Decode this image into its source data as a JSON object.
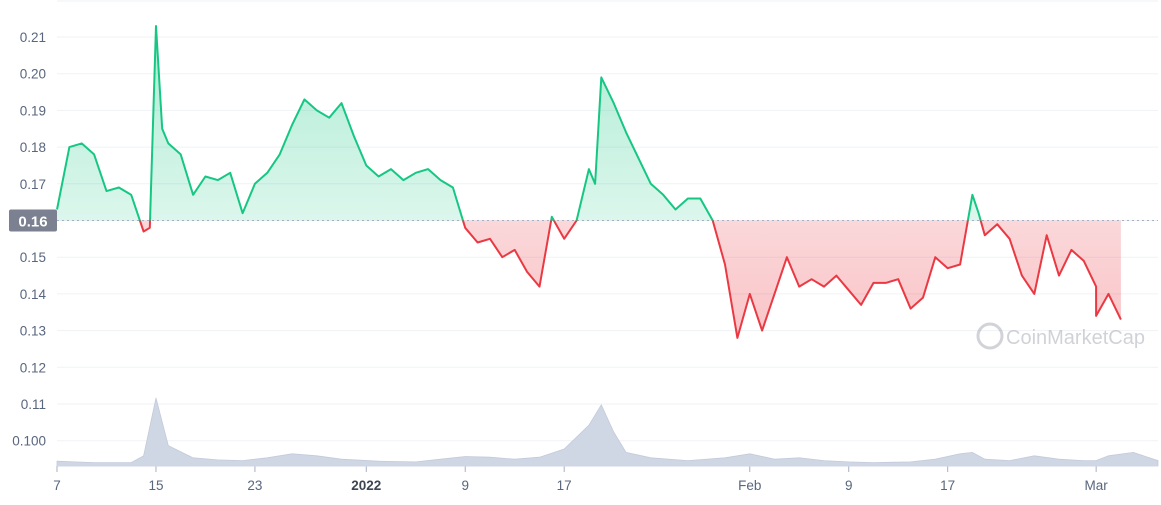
{
  "chart_data": {
    "type": "line",
    "title": "",
    "xlabel": "",
    "ylabel": "",
    "baseline": 0.16,
    "baseline_label": "0.16",
    "ylim": [
      0.093,
      0.216
    ],
    "y_ticks": [
      "0.21",
      "0.20",
      "0.19",
      "0.18",
      "0.17",
      "0.16",
      "0.15",
      "0.14",
      "0.13",
      "0.12",
      "0.11",
      "0.100"
    ],
    "x_ticks": [
      {
        "label": "7",
        "date": "2021-12-07"
      },
      {
        "label": "15",
        "date": "2021-12-15"
      },
      {
        "label": "23",
        "date": "2021-12-23"
      },
      {
        "label": "2022",
        "date": "2022-01-01",
        "bold": true
      },
      {
        "label": "9",
        "date": "2022-01-09"
      },
      {
        "label": "17",
        "date": "2022-01-17"
      },
      {
        "label": "Feb",
        "date": "2022-02-01"
      },
      {
        "label": "9",
        "date": "2022-02-09"
      },
      {
        "label": "17",
        "date": "2022-02-17"
      },
      {
        "label": "Mar",
        "date": "2022-03-01"
      }
    ],
    "x_range": [
      "2021-12-07",
      "2022-03-06"
    ],
    "grid": true,
    "colors": {
      "above": "#16c784",
      "below": "#ea3943",
      "volume": "#cfd6e4",
      "grid": "#eff2f5",
      "baseline_box": "#7b8191"
    },
    "watermark": "CoinMarketCap",
    "price": [
      [
        "2021-12-07",
        0.163
      ],
      [
        "2021-12-08",
        0.18
      ],
      [
        "2021-12-09",
        0.181
      ],
      [
        "2021-12-10",
        0.178
      ],
      [
        "2021-12-11",
        0.168
      ],
      [
        "2021-12-12",
        0.169
      ],
      [
        "2021-12-13",
        0.167
      ],
      [
        "2021-12-14",
        0.157
      ],
      [
        "2021-12-14T12:00",
        0.158
      ],
      [
        "2021-12-15",
        0.213
      ],
      [
        "2021-12-15T12:00",
        0.185
      ],
      [
        "2021-12-16",
        0.181
      ],
      [
        "2021-12-17",
        0.178
      ],
      [
        "2021-12-18",
        0.167
      ],
      [
        "2021-12-19",
        0.172
      ],
      [
        "2021-12-20",
        0.171
      ],
      [
        "2021-12-21",
        0.173
      ],
      [
        "2021-12-22",
        0.162
      ],
      [
        "2021-12-23",
        0.17
      ],
      [
        "2021-12-24",
        0.173
      ],
      [
        "2021-12-25",
        0.178
      ],
      [
        "2021-12-26",
        0.186
      ],
      [
        "2021-12-27",
        0.193
      ],
      [
        "2021-12-28",
        0.19
      ],
      [
        "2021-12-29",
        0.188
      ],
      [
        "2021-12-30",
        0.192
      ],
      [
        "2021-12-31",
        0.183
      ],
      [
        "2022-01-01",
        0.175
      ],
      [
        "2022-01-02",
        0.172
      ],
      [
        "2022-01-03",
        0.174
      ],
      [
        "2022-01-04",
        0.171
      ],
      [
        "2022-01-05",
        0.173
      ],
      [
        "2022-01-06",
        0.174
      ],
      [
        "2022-01-07",
        0.171
      ],
      [
        "2022-01-08",
        0.169
      ],
      [
        "2022-01-09",
        0.158
      ],
      [
        "2022-01-10",
        0.154
      ],
      [
        "2022-01-11",
        0.155
      ],
      [
        "2022-01-12",
        0.15
      ],
      [
        "2022-01-13",
        0.152
      ],
      [
        "2022-01-14",
        0.146
      ],
      [
        "2022-01-15",
        0.142
      ],
      [
        "2022-01-16",
        0.161
      ],
      [
        "2022-01-17",
        0.155
      ],
      [
        "2022-01-18",
        0.16
      ],
      [
        "2022-01-19",
        0.174
      ],
      [
        "2022-01-19T12:00",
        0.17
      ],
      [
        "2022-01-20",
        0.199
      ],
      [
        "2022-01-21",
        0.192
      ],
      [
        "2022-01-22",
        0.184
      ],
      [
        "2022-01-23",
        0.177
      ],
      [
        "2022-01-24",
        0.17
      ],
      [
        "2022-01-25",
        0.167
      ],
      [
        "2022-01-26",
        0.163
      ],
      [
        "2022-01-27",
        0.166
      ],
      [
        "2022-01-28",
        0.166
      ],
      [
        "2022-01-29",
        0.16
      ],
      [
        "2022-01-30",
        0.148
      ],
      [
        "2022-01-31",
        0.128
      ],
      [
        "2022-02-01",
        0.14
      ],
      [
        "2022-02-02",
        0.13
      ],
      [
        "2022-02-03",
        0.14
      ],
      [
        "2022-02-04",
        0.15
      ],
      [
        "2022-02-05",
        0.142
      ],
      [
        "2022-02-06",
        0.144
      ],
      [
        "2022-02-07",
        0.142
      ],
      [
        "2022-02-08",
        0.145
      ],
      [
        "2022-02-09",
        0.141
      ],
      [
        "2022-02-10",
        0.137
      ],
      [
        "2022-02-11",
        0.143
      ],
      [
        "2022-02-12",
        0.143
      ],
      [
        "2022-02-13",
        0.144
      ],
      [
        "2022-02-14",
        0.136
      ],
      [
        "2022-02-15",
        0.139
      ],
      [
        "2022-02-16",
        0.15
      ],
      [
        "2022-02-17",
        0.147
      ],
      [
        "2022-02-18",
        0.148
      ],
      [
        "2022-02-19",
        0.167
      ],
      [
        "2022-02-19T12:00",
        0.162
      ],
      [
        "2022-02-20",
        0.156
      ],
      [
        "2022-02-21",
        0.159
      ],
      [
        "2022-02-22",
        0.155
      ],
      [
        "2022-02-23",
        0.145
      ],
      [
        "2022-02-24",
        0.14
      ],
      [
        "2022-02-25",
        0.156
      ],
      [
        "2022-02-26",
        0.145
      ],
      [
        "2022-02-27",
        0.152
      ],
      [
        "2022-02-28",
        0.149
      ],
      [
        "2022-02-29",
        0.142
      ],
      [
        "2022-03-01",
        0.134
      ],
      [
        "2022-03-02",
        0.14
      ],
      [
        "2022-03-03",
        0.133
      ]
    ],
    "volume": [
      [
        "2021-12-07",
        0.7
      ],
      [
        "2021-12-10",
        0.5
      ],
      [
        "2021-12-13",
        0.5
      ],
      [
        "2021-12-14",
        1.5
      ],
      [
        "2021-12-15",
        10.0
      ],
      [
        "2021-12-16",
        3.0
      ],
      [
        "2021-12-18",
        1.2
      ],
      [
        "2021-12-20",
        0.9
      ],
      [
        "2021-12-22",
        0.8
      ],
      [
        "2021-12-24",
        1.2
      ],
      [
        "2021-12-26",
        1.8
      ],
      [
        "2021-12-28",
        1.5
      ],
      [
        "2021-12-30",
        1.0
      ],
      [
        "2022-01-02",
        0.7
      ],
      [
        "2022-01-05",
        0.6
      ],
      [
        "2022-01-07",
        1.0
      ],
      [
        "2022-01-09",
        1.4
      ],
      [
        "2022-01-11",
        1.3
      ],
      [
        "2022-01-13",
        1.0
      ],
      [
        "2022-01-15",
        1.3
      ],
      [
        "2022-01-17",
        2.5
      ],
      [
        "2022-01-19",
        6.0
      ],
      [
        "2022-01-20",
        9.0
      ],
      [
        "2022-01-21",
        5.0
      ],
      [
        "2022-01-22",
        2.0
      ],
      [
        "2022-01-24",
        1.2
      ],
      [
        "2022-01-27",
        0.8
      ],
      [
        "2022-01-30",
        1.2
      ],
      [
        "2022-02-01",
        1.8
      ],
      [
        "2022-02-03",
        1.0
      ],
      [
        "2022-02-05",
        1.2
      ],
      [
        "2022-02-07",
        0.8
      ],
      [
        "2022-02-09",
        0.6
      ],
      [
        "2022-02-11",
        0.5
      ],
      [
        "2022-02-14",
        0.6
      ],
      [
        "2022-02-16",
        1.0
      ],
      [
        "2022-02-18",
        1.8
      ],
      [
        "2022-02-19",
        2.0
      ],
      [
        "2022-02-20",
        1.0
      ],
      [
        "2022-02-22",
        0.8
      ],
      [
        "2022-02-24",
        1.5
      ],
      [
        "2022-02-26",
        1.0
      ],
      [
        "2022-02-28",
        0.8
      ],
      [
        "2022-03-01",
        0.8
      ],
      [
        "2022-03-02",
        1.5
      ],
      [
        "2022-03-04",
        2.0
      ],
      [
        "2022-03-06",
        0.8
      ]
    ]
  }
}
